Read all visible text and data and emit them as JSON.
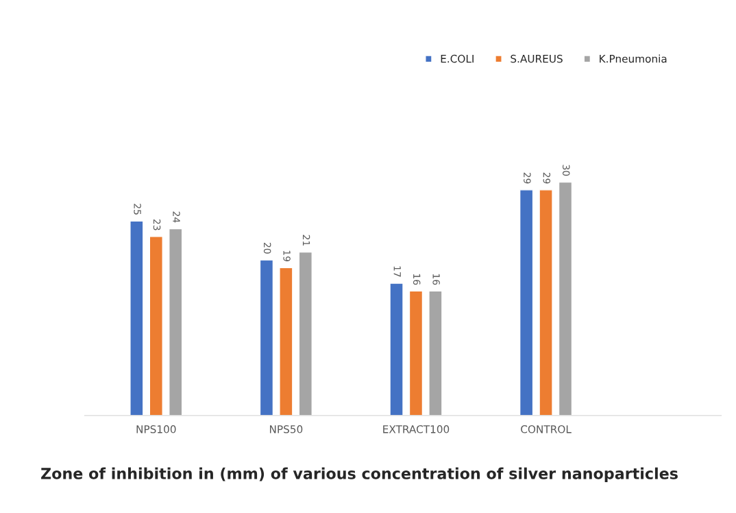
{
  "chart_data": {
    "type": "bar",
    "title": "Zone of inhibition in (mm) of various concentration of silver nanoparticles",
    "categories": [
      "NPS100",
      "NPS50",
      "EXTRACT100",
      "CONTROL"
    ],
    "series": [
      {
        "name": "E.COLI",
        "color": "#4472c4",
        "values": [
          25,
          20,
          17,
          29
        ]
      },
      {
        "name": "S.AUREUS",
        "color": "#ed7d31",
        "values": [
          23,
          19,
          16,
          29
        ]
      },
      {
        "name": "K.Pneumonia",
        "color": "#a5a5a5",
        "values": [
          24,
          21,
          16,
          30
        ]
      }
    ],
    "data_labels": true,
    "legend": "top right",
    "grid": false
  }
}
